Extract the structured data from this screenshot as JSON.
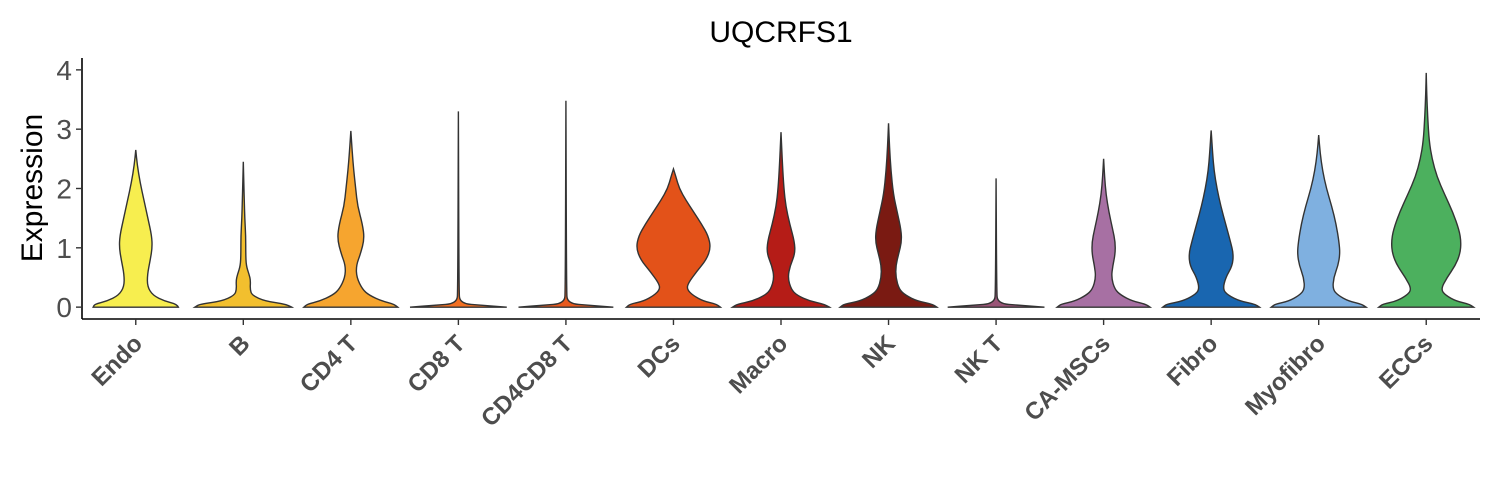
{
  "chart_data": {
    "type": "violin",
    "title": "UQCRFS1",
    "ylabel": "Expression",
    "xlabel": "",
    "ylim": [
      -0.2,
      4.2
    ],
    "yticks": [
      0,
      1,
      2,
      3,
      4
    ],
    "grid": false,
    "legend": "none",
    "categories": [
      "Endo",
      "B",
      "CD4 T",
      "CD8 T",
      "CD4CD8 T",
      "DCs",
      "Macro",
      "NK",
      "NK T",
      "CA-MSCs",
      "Fibro",
      "Myofibro",
      "ECCs"
    ],
    "series": [
      {
        "category": "Endo",
        "color": "#F7EE4F",
        "max": 2.65,
        "profile": [
          [
            0,
            0.88
          ],
          [
            0.05,
            0.85
          ],
          [
            0.1,
            0.6
          ],
          [
            0.2,
            0.35
          ],
          [
            0.35,
            0.24
          ],
          [
            0.55,
            0.24
          ],
          [
            0.8,
            0.3
          ],
          [
            1.0,
            0.34
          ],
          [
            1.2,
            0.33
          ],
          [
            1.5,
            0.25
          ],
          [
            1.8,
            0.17
          ],
          [
            2.1,
            0.09
          ],
          [
            2.4,
            0.03
          ],
          [
            2.65,
            0.0
          ]
        ]
      },
      {
        "category": "B",
        "color": "#F2BF2E",
        "max": 2.45,
        "profile": [
          [
            0,
            1.0
          ],
          [
            0.05,
            0.9
          ],
          [
            0.1,
            0.45
          ],
          [
            0.2,
            0.18
          ],
          [
            0.3,
            0.14
          ],
          [
            0.45,
            0.15
          ],
          [
            0.55,
            0.12
          ],
          [
            0.7,
            0.06
          ],
          [
            0.9,
            0.05
          ],
          [
            1.2,
            0.05
          ],
          [
            1.5,
            0.03
          ],
          [
            1.8,
            0.02
          ],
          [
            2.1,
            0.01
          ],
          [
            2.45,
            0.0
          ]
        ]
      },
      {
        "category": "CD4 T",
        "color": "#F6A52F",
        "max": 2.97,
        "profile": [
          [
            0,
            0.97
          ],
          [
            0.05,
            0.9
          ],
          [
            0.1,
            0.65
          ],
          [
            0.2,
            0.38
          ],
          [
            0.3,
            0.24
          ],
          [
            0.5,
            0.12
          ],
          [
            0.7,
            0.11
          ],
          [
            0.9,
            0.2
          ],
          [
            1.15,
            0.28
          ],
          [
            1.4,
            0.24
          ],
          [
            1.7,
            0.14
          ],
          [
            2.0,
            0.1
          ],
          [
            2.3,
            0.06
          ],
          [
            2.6,
            0.03
          ],
          [
            2.97,
            0.0
          ]
        ]
      },
      {
        "category": "CD8 T",
        "color": "#F26F21",
        "max": 3.3,
        "profile": [
          [
            0,
            1.0
          ],
          [
            0.03,
            0.5
          ],
          [
            0.06,
            0.03
          ],
          [
            0.3,
            0.012
          ],
          [
            3.3,
            0.0
          ]
        ]
      },
      {
        "category": "CD4CD8 T",
        "color": "#E85A1E",
        "max": 3.48,
        "profile": [
          [
            0,
            0.98
          ],
          [
            0.03,
            0.5
          ],
          [
            0.06,
            0.03
          ],
          [
            0.3,
            0.012
          ],
          [
            3.48,
            0.0
          ]
        ]
      },
      {
        "category": "DCs",
        "color": "#E35219",
        "max": 2.33,
        "profile": [
          [
            0,
            0.97
          ],
          [
            0.05,
            0.9
          ],
          [
            0.1,
            0.62
          ],
          [
            0.2,
            0.4
          ],
          [
            0.3,
            0.28
          ],
          [
            0.4,
            0.3
          ],
          [
            0.6,
            0.48
          ],
          [
            0.8,
            0.68
          ],
          [
            1.0,
            0.77
          ],
          [
            1.2,
            0.72
          ],
          [
            1.4,
            0.58
          ],
          [
            1.6,
            0.42
          ],
          [
            1.8,
            0.26
          ],
          [
            2.0,
            0.12
          ],
          [
            2.2,
            0.05
          ],
          [
            2.33,
            0.0
          ]
        ]
      },
      {
        "category": "Macro",
        "color": "#B51C17",
        "max": 2.95,
        "profile": [
          [
            0,
            1.0
          ],
          [
            0.05,
            0.9
          ],
          [
            0.1,
            0.6
          ],
          [
            0.2,
            0.33
          ],
          [
            0.3,
            0.21
          ],
          [
            0.5,
            0.14
          ],
          [
            0.7,
            0.19
          ],
          [
            0.9,
            0.29
          ],
          [
            1.1,
            0.28
          ],
          [
            1.4,
            0.18
          ],
          [
            1.7,
            0.1
          ],
          [
            2.0,
            0.06
          ],
          [
            2.4,
            0.03
          ],
          [
            2.95,
            0.0
          ]
        ]
      },
      {
        "category": "NK",
        "color": "#7A1A12",
        "max": 3.1,
        "profile": [
          [
            0,
            1.0
          ],
          [
            0.05,
            0.92
          ],
          [
            0.1,
            0.6
          ],
          [
            0.2,
            0.35
          ],
          [
            0.3,
            0.22
          ],
          [
            0.5,
            0.15
          ],
          [
            0.7,
            0.15
          ],
          [
            0.9,
            0.21
          ],
          [
            1.1,
            0.27
          ],
          [
            1.3,
            0.26
          ],
          [
            1.6,
            0.18
          ],
          [
            1.9,
            0.1
          ],
          [
            2.3,
            0.05
          ],
          [
            2.7,
            0.02
          ],
          [
            3.1,
            0.0
          ]
        ]
      },
      {
        "category": "NK T",
        "color": "#9A5577",
        "max": 2.17,
        "profile": [
          [
            0,
            1.0
          ],
          [
            0.03,
            0.5
          ],
          [
            0.06,
            0.03
          ],
          [
            0.3,
            0.012
          ],
          [
            2.17,
            0.0
          ]
        ]
      },
      {
        "category": "CA-MSCs",
        "color": "#A770A3",
        "max": 2.5,
        "profile": [
          [
            0,
            0.96
          ],
          [
            0.05,
            0.88
          ],
          [
            0.1,
            0.6
          ],
          [
            0.2,
            0.36
          ],
          [
            0.3,
            0.23
          ],
          [
            0.5,
            0.16
          ],
          [
            0.7,
            0.19
          ],
          [
            0.9,
            0.24
          ],
          [
            1.1,
            0.24
          ],
          [
            1.3,
            0.19
          ],
          [
            1.6,
            0.11
          ],
          [
            1.9,
            0.05
          ],
          [
            2.2,
            0.02
          ],
          [
            2.5,
            0.0
          ]
        ]
      },
      {
        "category": "Fibro",
        "color": "#1966B0",
        "max": 2.98,
        "profile": [
          [
            0,
            1.0
          ],
          [
            0.05,
            0.92
          ],
          [
            0.1,
            0.6
          ],
          [
            0.2,
            0.35
          ],
          [
            0.3,
            0.24
          ],
          [
            0.5,
            0.3
          ],
          [
            0.7,
            0.44
          ],
          [
            0.9,
            0.46
          ],
          [
            1.1,
            0.4
          ],
          [
            1.4,
            0.3
          ],
          [
            1.7,
            0.2
          ],
          [
            2.0,
            0.12
          ],
          [
            2.3,
            0.06
          ],
          [
            2.6,
            0.03
          ],
          [
            2.98,
            0.0
          ]
        ]
      },
      {
        "category": "Myofibro",
        "color": "#7FB0E0",
        "max": 2.9,
        "profile": [
          [
            0,
            0.98
          ],
          [
            0.05,
            0.9
          ],
          [
            0.1,
            0.62
          ],
          [
            0.2,
            0.4
          ],
          [
            0.3,
            0.29
          ],
          [
            0.5,
            0.31
          ],
          [
            0.7,
            0.4
          ],
          [
            0.9,
            0.44
          ],
          [
            1.1,
            0.42
          ],
          [
            1.4,
            0.36
          ],
          [
            1.7,
            0.27
          ],
          [
            2.0,
            0.16
          ],
          [
            2.3,
            0.08
          ],
          [
            2.6,
            0.03
          ],
          [
            2.9,
            0.0
          ]
        ]
      },
      {
        "category": "ECCs",
        "color": "#4CB05E",
        "max": 3.95,
        "profile": [
          [
            0,
            0.98
          ],
          [
            0.05,
            0.9
          ],
          [
            0.1,
            0.62
          ],
          [
            0.2,
            0.4
          ],
          [
            0.3,
            0.3
          ],
          [
            0.5,
            0.43
          ],
          [
            0.7,
            0.6
          ],
          [
            0.9,
            0.7
          ],
          [
            1.1,
            0.72
          ],
          [
            1.3,
            0.68
          ],
          [
            1.6,
            0.55
          ],
          [
            1.9,
            0.38
          ],
          [
            2.2,
            0.22
          ],
          [
            2.5,
            0.12
          ],
          [
            2.8,
            0.06
          ],
          [
            3.2,
            0.03
          ],
          [
            3.6,
            0.01
          ],
          [
            3.95,
            0.0
          ]
        ]
      }
    ]
  }
}
